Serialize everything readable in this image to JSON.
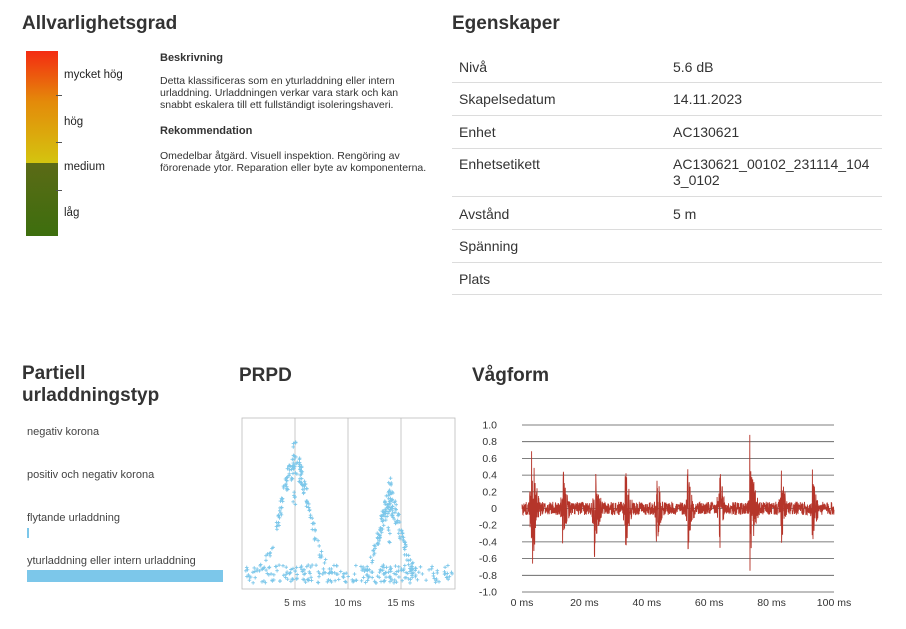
{
  "severity": {
    "title": "Allvarlighetsgrad",
    "levels": [
      "mycket hög",
      "hög",
      "medium",
      "låg"
    ],
    "current_level": "medium",
    "description_title": "Beskrivning",
    "description": "Detta klassificeras som en yturladdning eller intern urladdning. Urladdningen verkar vara stark och kan snabbt eskalera till ett fullständigt isoleringshaveri.",
    "recommendation_title": "Rekommendation",
    "recommendation": "Omedelbar åtgärd. Visuell inspektion. Rengöring av förorenade ytor. Reparation eller byte av komponenterna.",
    "colors": {
      "top": "#f42b12",
      "upper_mid": "#e48a0a",
      "active": "#d4c40f",
      "lower_mid": "#5b6a16",
      "bottom": "#3d6e0e"
    }
  },
  "properties": {
    "title": "Egenskaper",
    "rows": [
      {
        "key": "Nivå",
        "value": "5.6 dB"
      },
      {
        "key": "Skapelsedatum",
        "value": "14.11.2023"
      },
      {
        "key": "Enhet",
        "value": "AC130621"
      },
      {
        "key": "Enhetsetikett",
        "value": "AC130621_00102_231114_1043_0102"
      },
      {
        "key": "Avstånd",
        "value": "5 m"
      },
      {
        "key": "Spänning",
        "value": ""
      },
      {
        "key": "Plats",
        "value": ""
      }
    ]
  },
  "pd_type": {
    "title": "Partiell urladdningstyp",
    "items": [
      {
        "label": "negativ korona",
        "score": 0
      },
      {
        "label": "positiv och negativ korona",
        "score": 0
      },
      {
        "label": "flytande urladdning",
        "score": 0.01
      },
      {
        "label": "yturladdning eller intern urladdning",
        "score": 1.0
      }
    ],
    "bar_color": "#7cc7ea"
  },
  "prpd": {
    "title": "PRPD",
    "color": "#7cc7ea",
    "x_ticks": [
      "5 ms",
      "10 ms",
      "15 ms"
    ]
  },
  "chart_data": {
    "type": "line",
    "title": "Vågform",
    "xlabel": "",
    "ylabel": "",
    "x_ticks": [
      "0 ms",
      "20 ms",
      "40 ms",
      "60 ms",
      "80 ms",
      "100 ms"
    ],
    "y_ticks": [
      "1.0",
      "0.8",
      "0.6",
      "0.4",
      "0.2",
      "0",
      "-0.2",
      "-0.4",
      "-0.6",
      "-0.8",
      "-1.0"
    ],
    "xlim": [
      0,
      100
    ],
    "ylim": [
      -1.0,
      1.0
    ],
    "color": "#b5352a",
    "grid": true,
    "bursts": [
      {
        "x": 3,
        "peak": 0.98
      },
      {
        "x": 13,
        "peak": 0.55
      },
      {
        "x": 23,
        "peak": 0.75
      },
      {
        "x": 33,
        "peak": 0.65
      },
      {
        "x": 43,
        "peak": 0.55
      },
      {
        "x": 53,
        "peak": 0.62
      },
      {
        "x": 63,
        "peak": 0.68
      },
      {
        "x": 73,
        "peak": 0.9
      },
      {
        "x": 83,
        "peak": 0.55
      },
      {
        "x": 93,
        "peak": 0.52
      }
    ],
    "noise_level": 0.08
  }
}
